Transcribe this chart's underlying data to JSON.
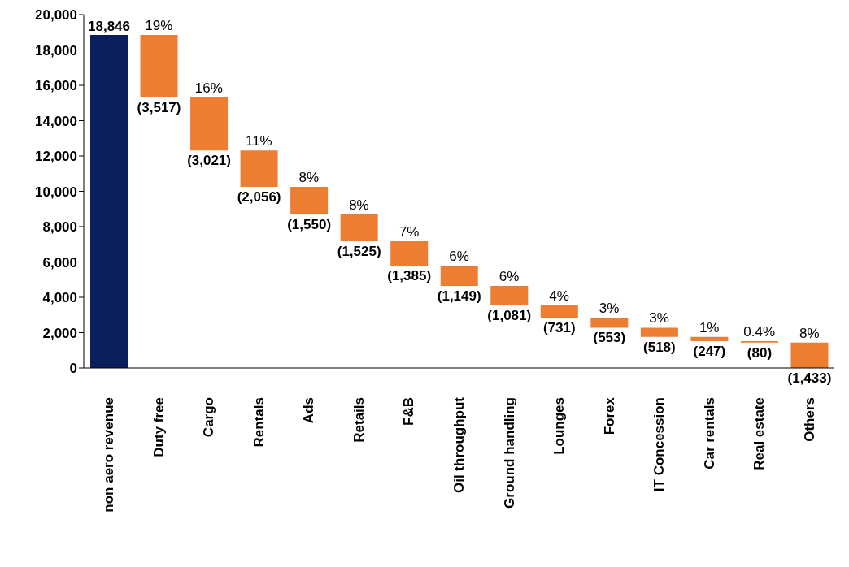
{
  "chart_data": {
    "type": "bar",
    "categories": [
      "non aero revenue",
      "Duty free",
      "Cargo",
      "Rentals",
      "Ads",
      "Retails",
      "F&B",
      "Oil throughput",
      "Ground handling",
      "Lounges",
      "Forex",
      "IT Concession",
      "Car rentals",
      "Real estate",
      "Others"
    ],
    "values": [
      18846,
      -3517,
      -3021,
      -2056,
      -1550,
      -1525,
      -1385,
      -1149,
      -1081,
      -731,
      -553,
      -518,
      -247,
      -80,
      -1433
    ],
    "base": [
      0,
      18846,
      15329,
      12308,
      10252,
      8702,
      7177,
      5792,
      4643,
      3562,
      2831,
      2278,
      1760,
      1513,
      1433
    ],
    "colors": [
      "#0b1f5e",
      "#ed7d31",
      "#ed7d31",
      "#ed7d31",
      "#ed7d31",
      "#ed7d31",
      "#ed7d31",
      "#ed7d31",
      "#ed7d31",
      "#ed7d31",
      "#ed7d31",
      "#ed7d31",
      "#ed7d31",
      "#ed7d31",
      "#ed7d31"
    ],
    "value_labels": [
      "18,846",
      "(3,517)",
      "(3,021)",
      "(2,056)",
      "(1,550)",
      "(1,525)",
      "(1,385)",
      "(1,149)",
      "(1,081)",
      "(731)",
      "(553)",
      "(518)",
      "(247)",
      "(80)",
      "(1,433)"
    ],
    "annotations": [
      {
        "text": "19%",
        "x": "Duty free",
        "y": 18846
      },
      {
        "text": "16%",
        "x": "Cargo",
        "y": 15329
      },
      {
        "text": "11%",
        "x": "Rentals",
        "y": 12308
      },
      {
        "text": "8%",
        "x": "Ads",
        "y": 10252
      },
      {
        "text": "8%",
        "x": "Retails",
        "y": 8702
      },
      {
        "text": "7%",
        "x": "F&B",
        "y": 7177
      },
      {
        "text": "6%",
        "x": "Oil throughput",
        "y": 5792
      },
      {
        "text": "6%",
        "x": "Ground handling",
        "y": 4643
      },
      {
        "text": "4%",
        "x": "Lounges",
        "y": 3562
      },
      {
        "text": "3%",
        "x": "Forex",
        "y": 2831
      },
      {
        "text": "3%",
        "x": "IT Concession",
        "y": 2278
      },
      {
        "text": "1%",
        "x": "Car rentals",
        "y": 1760
      },
      {
        "text": "0.4%",
        "x": "Real estate",
        "y": 1513
      },
      {
        "text": "8%",
        "x": "Others",
        "y": 1433
      }
    ],
    "ylim": [
      0,
      20000
    ],
    "yticks": [
      {
        "value": 0,
        "label": "0"
      },
      {
        "value": 2000,
        "label": "2,000"
      },
      {
        "value": 4000,
        "label": "4,000"
      },
      {
        "value": 6000,
        "label": "6,000"
      },
      {
        "value": 8000,
        "label": "8,000"
      },
      {
        "value": 10000,
        "label": "10,000"
      },
      {
        "value": 12000,
        "label": "12,000"
      },
      {
        "value": 14000,
        "label": "14,000"
      },
      {
        "value": 16000,
        "label": "16,000"
      },
      {
        "value": 18000,
        "label": "18,000"
      },
      {
        "value": 20000,
        "label": "20,000"
      }
    ],
    "grid": false,
    "legend": false
  }
}
